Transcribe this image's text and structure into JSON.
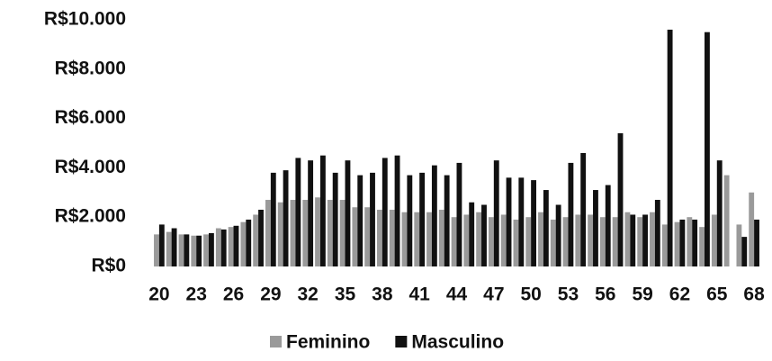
{
  "chart_data": {
    "type": "bar",
    "categories": [
      "20",
      null,
      null,
      "23",
      null,
      null,
      "26",
      null,
      null,
      "29",
      null,
      null,
      "32",
      null,
      null,
      "35",
      null,
      null,
      "38",
      null,
      null,
      "41",
      null,
      null,
      "44",
      null,
      null,
      "47",
      null,
      null,
      "50",
      null,
      null,
      "53",
      null,
      null,
      "56",
      null,
      null,
      "59",
      null,
      null,
      "62",
      null,
      null,
      "65",
      null,
      null,
      "68"
    ],
    "series": [
      {
        "name": "Feminino",
        "color": "#9a9a9a",
        "values": [
          1300,
          1400,
          1300,
          1250,
          1300,
          1550,
          1600,
          1800,
          2100,
          2700,
          2600,
          2700,
          2700,
          2800,
          2700,
          2700,
          2400,
          2400,
          2300,
          2300,
          2200,
          2200,
          2200,
          2300,
          2000,
          2100,
          2200,
          2000,
          2100,
          1900,
          2000,
          2200,
          1900,
          2000,
          2100,
          2100,
          2000,
          2000,
          2200,
          2000,
          2200,
          1700,
          1800,
          2000,
          1600,
          2100,
          3700,
          1700,
          3000
        ]
      },
      {
        "name": "Masculino",
        "color": "#111111",
        "values": [
          1700,
          1550,
          1300,
          1250,
          1350,
          1500,
          1650,
          1900,
          2300,
          3800,
          3900,
          4400,
          4300,
          4500,
          3800,
          4300,
          3700,
          3800,
          4400,
          4500,
          3700,
          3800,
          4100,
          3700,
          4200,
          2600,
          2500,
          4300,
          3600,
          3600,
          3500,
          3100,
          2500,
          4200,
          4600,
          3100,
          3300,
          5400,
          2100,
          2100,
          2700,
          9600,
          1900,
          1900,
          9500,
          4300,
          null,
          1200,
          1900
        ]
      }
    ],
    "ylim": [
      0,
      10000
    ],
    "yticks": [
      {
        "value": 0,
        "label": "R$0"
      },
      {
        "value": 2000,
        "label": "R$2.000"
      },
      {
        "value": 4000,
        "label": "R$4.000"
      },
      {
        "value": 6000,
        "label": "R$6.000"
      },
      {
        "value": 8000,
        "label": "R$8.000"
      },
      {
        "value": 10000,
        "label": "R$10.000"
      }
    ],
    "grid": false
  }
}
